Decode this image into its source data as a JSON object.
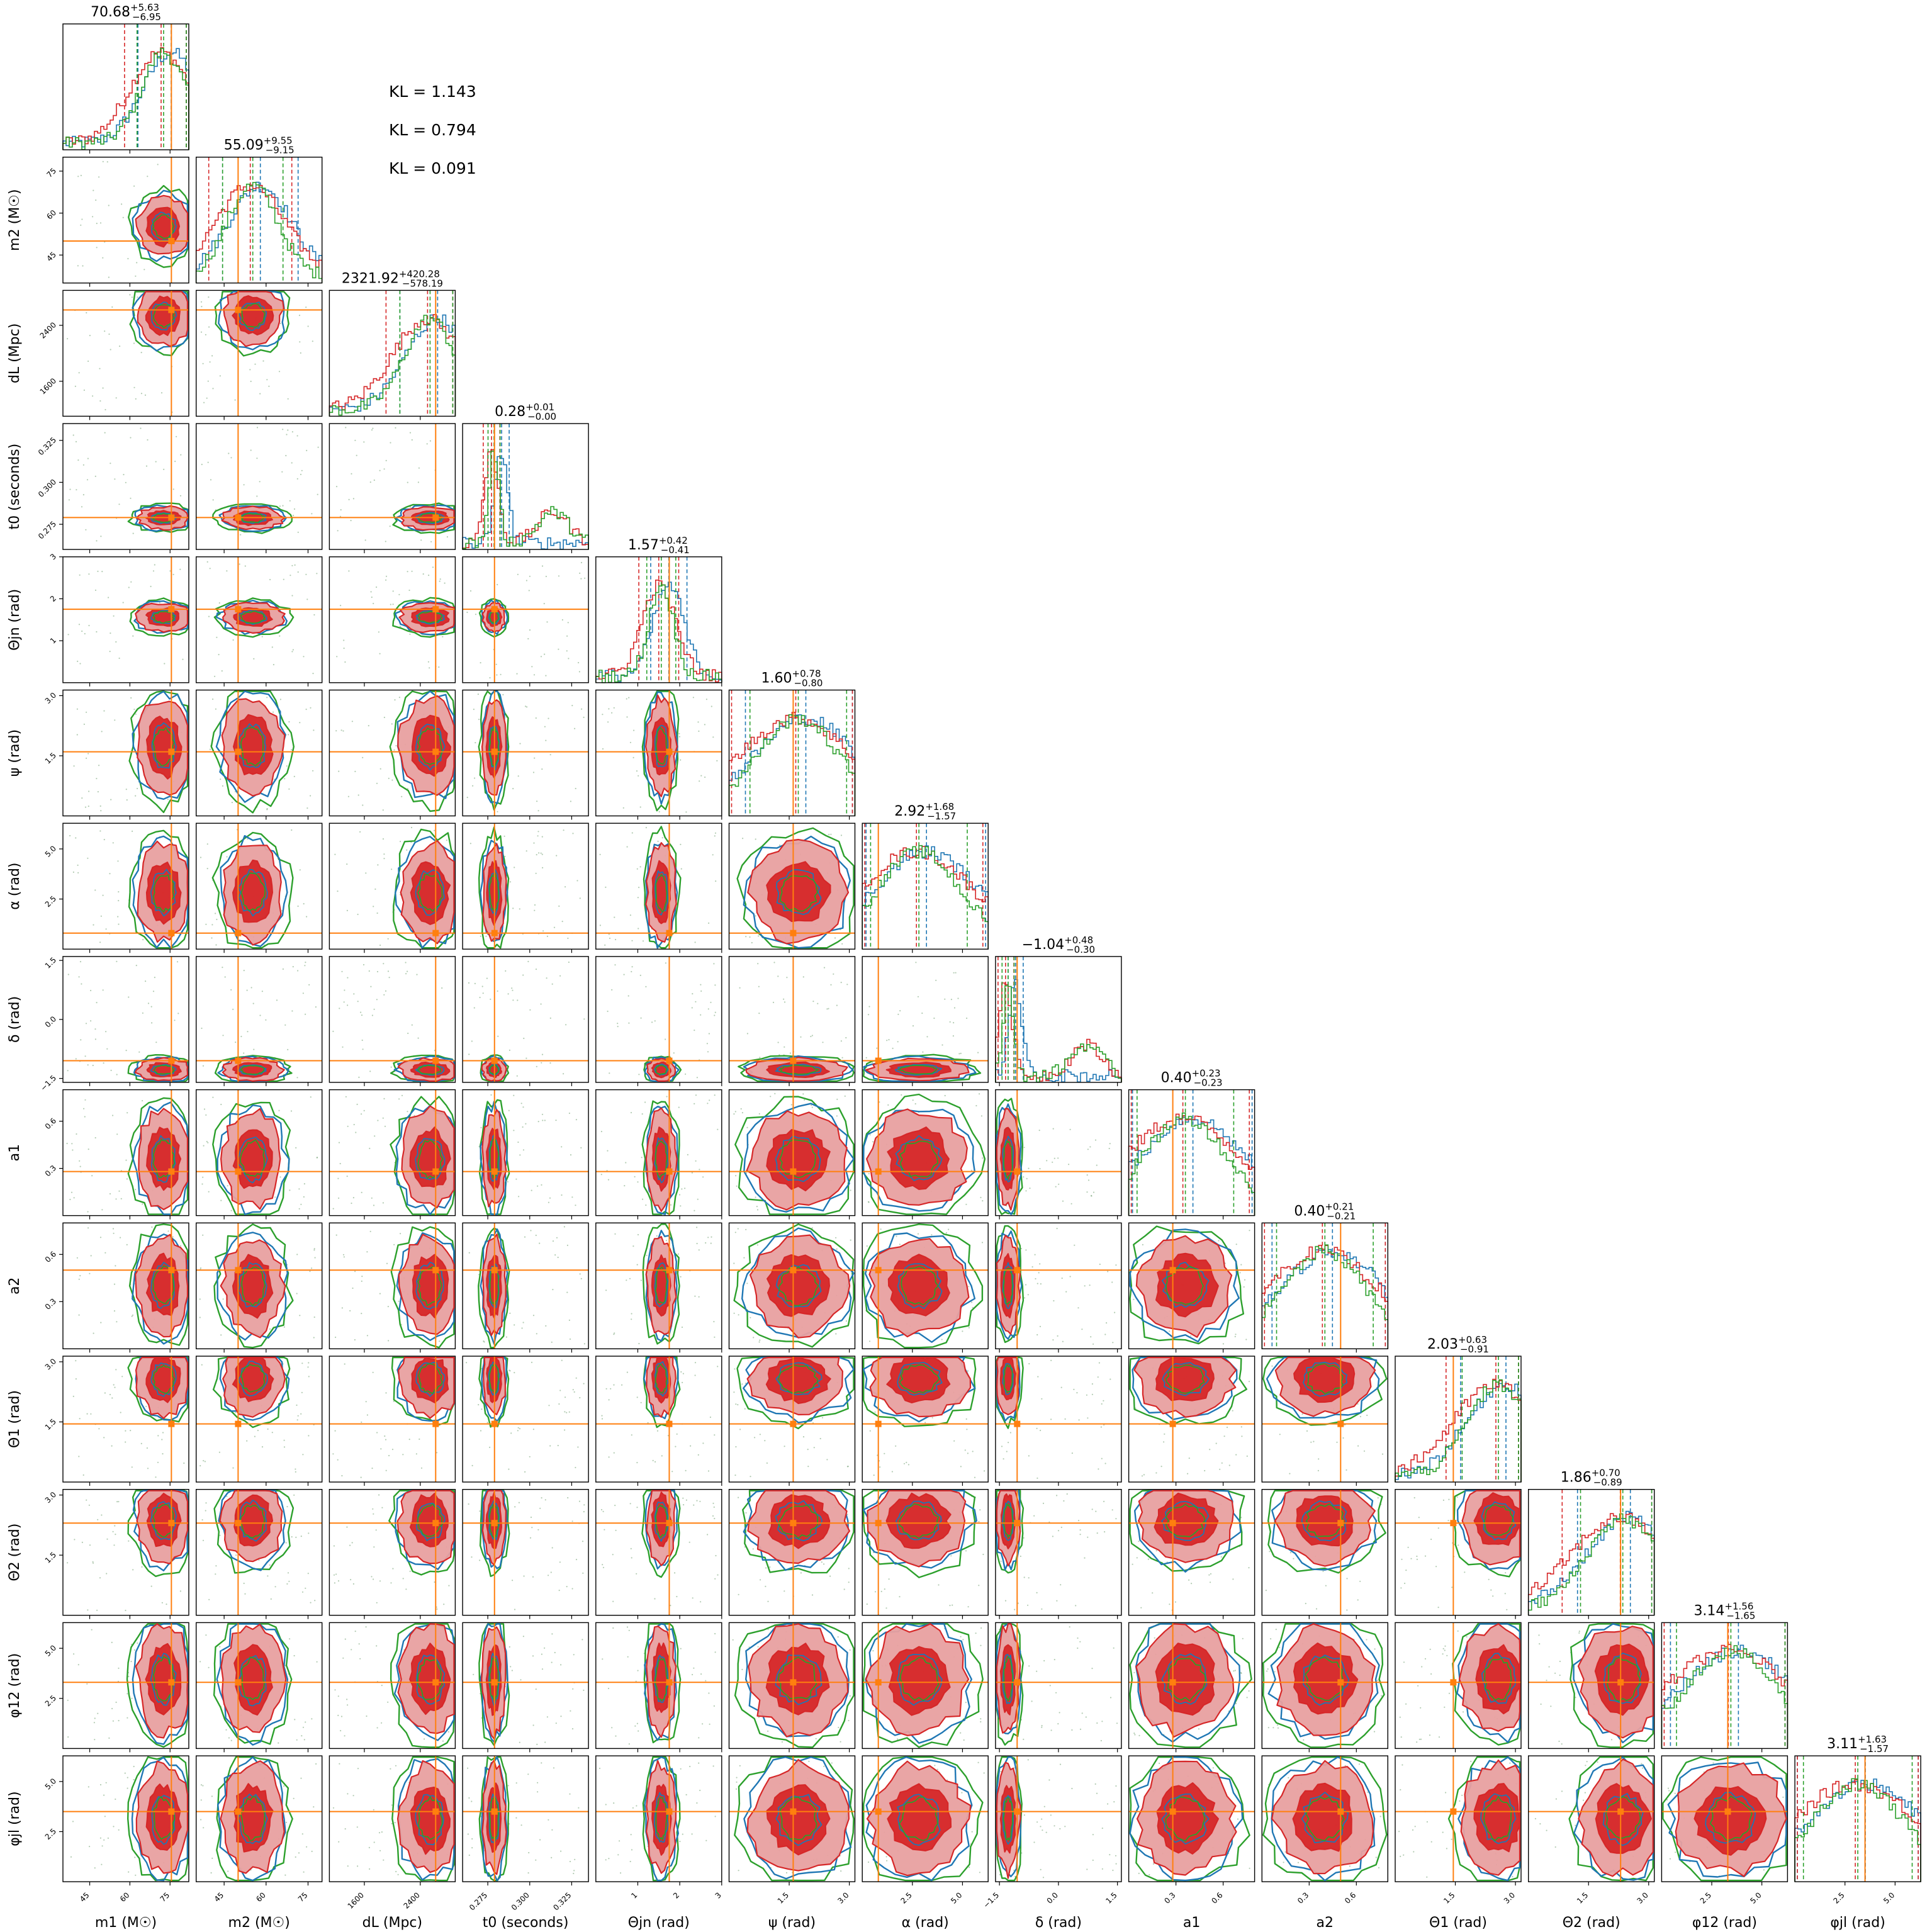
{
  "figure": {
    "kl_annotations": [
      "KL = 1.143",
      "KL = 0.794",
      "KL = 0.091"
    ]
  },
  "colors": {
    "series_blue": "#1f77b4",
    "series_red": "#d62728",
    "series_green": "#2ca02c",
    "truth": "#ff7f0e",
    "frame": "#000000"
  },
  "chart_data": {
    "type": "corner",
    "series_colors": [
      "#1f77b4",
      "#d62728",
      "#2ca02c"
    ],
    "truth_color": "#ff7f0e",
    "parameters": [
      {
        "label": "m1 (M☉)",
        "title": "70.68",
        "err_plus": "+5.63",
        "err_minus": "−6.95",
        "ticks": [
          "45",
          "60",
          "75"
        ],
        "range": [
          35,
          82
        ],
        "truth": 75.5,
        "peak": 0.8,
        "width": 0.22
      },
      {
        "label": "m2 (M☉)",
        "title": "55.09",
        "err_plus": "+9.55",
        "err_minus": "−9.15",
        "ticks": [
          "45",
          "60",
          "75"
        ],
        "range": [
          35,
          80
        ],
        "truth": 50.0,
        "peak": 0.45,
        "width": 0.25
      },
      {
        "label": "dL (Mpc)",
        "title": "2321.92",
        "err_plus": "+420.28",
        "err_minus": "−578.19",
        "ticks": [
          "1600",
          "2400"
        ],
        "range": [
          1100,
          2900
        ],
        "truth": 2620,
        "peak": 0.8,
        "width": 0.25
      },
      {
        "label": "t0 (seconds)",
        "title": "0.28",
        "err_plus": "+0.01",
        "err_minus": "−0.00",
        "ticks": [
          "0.275",
          "0.300",
          "0.325"
        ],
        "range": [
          0.26,
          0.335
        ],
        "truth": 0.279,
        "peak": 0.25,
        "width": 0.05
      },
      {
        "label": "Θjn (rad)",
        "title": "1.57",
        "err_plus": "+0.42",
        "err_minus": "−0.41",
        "ticks": [
          "1",
          "2",
          "3"
        ],
        "range": [
          0,
          3
        ],
        "truth": 1.75,
        "peak": 0.52,
        "width": 0.12
      },
      {
        "label": "ψ (rad)",
        "title": "1.60",
        "err_plus": "+0.78",
        "err_minus": "−0.80",
        "ticks": [
          "1.5",
          "3.0"
        ],
        "range": [
          0,
          3.14
        ],
        "truth": 1.6,
        "peak": 0.55,
        "width": 0.4
      },
      {
        "label": "α (rad)",
        "title": "2.92",
        "err_plus": "+1.68",
        "err_minus": "−1.57",
        "ticks": [
          "2.5",
          "5.0"
        ],
        "range": [
          0,
          6.28
        ],
        "truth": 0.8,
        "peak": 0.45,
        "width": 0.4
      },
      {
        "label": "δ (rad)",
        "title": "−1.04",
        "err_plus": "+0.48",
        "err_minus": "−0.30",
        "ticks": [
          "−1.5",
          "0.0",
          "1.5"
        ],
        "range": [
          -1.6,
          1.6
        ],
        "truth": -1.05,
        "peak": 0.1,
        "width": 0.05
      },
      {
        "label": "a1",
        "title": "0.40",
        "err_plus": "+0.23",
        "err_minus": "−0.23",
        "ticks": [
          "0.3",
          "0.6"
        ],
        "range": [
          0,
          0.8
        ],
        "truth": 0.28,
        "peak": 0.45,
        "width": 0.4
      },
      {
        "label": "a2",
        "title": "0.40",
        "err_plus": "+0.21",
        "err_minus": "−0.21",
        "ticks": [
          "0.3",
          "0.6"
        ],
        "range": [
          0,
          0.8
        ],
        "truth": 0.5,
        "peak": 0.5,
        "width": 0.4
      },
      {
        "label": "Θ1 (rad)",
        "title": "2.03",
        "err_plus": "+0.63",
        "err_minus": "−0.91",
        "ticks": [
          "1.5",
          "3.0"
        ],
        "range": [
          0,
          3.14
        ],
        "truth": 1.45,
        "peak": 0.82,
        "width": 0.3
      },
      {
        "label": "Θ2 (rad)",
        "title": "1.86",
        "err_plus": "+0.70",
        "err_minus": "−0.89",
        "ticks": [
          "1.5",
          "3.0"
        ],
        "range": [
          0,
          3.14
        ],
        "truth": 2.3,
        "peak": 0.75,
        "width": 0.35
      },
      {
        "label": "φ12 (rad)",
        "title": "3.14",
        "err_plus": "+1.56",
        "err_minus": "−1.65",
        "ticks": [
          "2.5",
          "5.0"
        ],
        "range": [
          0,
          6.28
        ],
        "truth": 3.3,
        "peak": 0.55,
        "width": 0.45
      },
      {
        "label": "φjl (rad)",
        "title": "3.11",
        "err_plus": "+1.63",
        "err_minus": "−1.57",
        "ticks": [
          "2.5",
          "5.0"
        ],
        "range": [
          0,
          6.28
        ],
        "truth": 3.5,
        "peak": 0.5,
        "width": 0.45
      }
    ]
  }
}
